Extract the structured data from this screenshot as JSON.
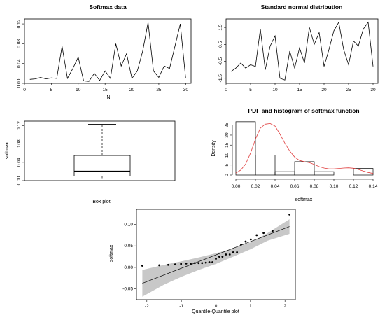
{
  "chart_data": [
    {
      "id": "softmax-data",
      "type": "line",
      "title": "Softmax data",
      "xlabel": "N",
      "ylabel": "",
      "xlim": [
        0,
        31
      ],
      "ylim": [
        0,
        0.13
      ],
      "xticks": [
        0,
        5,
        10,
        15,
        20,
        25,
        30
      ],
      "yticks": [
        0.0,
        0.04,
        0.08,
        0.12
      ],
      "ytick_labels": [
        "0.00",
        "0.04",
        "0.08",
        "0.12"
      ],
      "x": [
        1,
        2,
        3,
        4,
        5,
        6,
        7,
        8,
        9,
        10,
        11,
        12,
        13,
        14,
        15,
        16,
        17,
        18,
        19,
        20,
        21,
        22,
        23,
        24,
        25,
        26,
        27,
        28,
        29,
        30
      ],
      "values": [
        0.008,
        0.009,
        0.012,
        0.009,
        0.011,
        0.01,
        0.075,
        0.01,
        0.03,
        0.053,
        0.005,
        0.004,
        0.02,
        0.006,
        0.025,
        0.01,
        0.08,
        0.035,
        0.06,
        0.01,
        0.025,
        0.065,
        0.123,
        0.025,
        0.012,
        0.035,
        0.03,
        0.075,
        0.12,
        0.01
      ]
    },
    {
      "id": "standard-normal",
      "type": "line",
      "title": "Standard normal distribution",
      "xlabel": "",
      "ylabel": "",
      "xlim": [
        0,
        31
      ],
      "ylim": [
        -1.8,
        2.0
      ],
      "xticks": [
        0,
        5,
        10,
        15,
        20,
        25,
        30
      ],
      "yticks": [
        -1.5,
        -0.5,
        0.5,
        1.5
      ],
      "ytick_labels": [
        "-1.5",
        "-0.5",
        "0.5",
        "1.5"
      ],
      "x": [
        1,
        2,
        3,
        4,
        5,
        6,
        7,
        8,
        9,
        10,
        11,
        12,
        13,
        14,
        15,
        16,
        17,
        18,
        19,
        20,
        21,
        22,
        23,
        24,
        25,
        26,
        27,
        28,
        29,
        30
      ],
      "values": [
        -1.1,
        -0.9,
        -0.6,
        -0.9,
        -0.7,
        -0.8,
        1.4,
        -1.0,
        0.4,
        1.0,
        -1.5,
        -1.6,
        0.1,
        -0.9,
        0.3,
        -0.6,
        1.5,
        0.5,
        1.2,
        -0.8,
        0.2,
        1.3,
        1.8,
        0.2,
        -0.7,
        0.7,
        0.4,
        1.4,
        1.8,
        -0.8
      ]
    },
    {
      "id": "box-plot",
      "type": "box",
      "title": "",
      "xlabel": "Box plot",
      "ylabel": "softmax",
      "ylim": [
        0,
        0.13
      ],
      "yticks": [
        0.0,
        0.04,
        0.08,
        0.12
      ],
      "ytick_labels": [
        "0.00",
        "0.04",
        "0.08",
        "0.12"
      ],
      "box": {
        "min": 0.004,
        "q1": 0.01,
        "median": 0.02,
        "q3": 0.055,
        "max": 0.123
      }
    },
    {
      "id": "pdf-histogram",
      "type": "histogram",
      "title": "PDF and histogram of softmax function",
      "xlabel": "softmax",
      "ylabel": "Density",
      "xlim": [
        0,
        0.14
      ],
      "ylim": [
        0,
        27
      ],
      "xticks": [
        0.0,
        0.02,
        0.04,
        0.06,
        0.08,
        0.1,
        0.12,
        0.14
      ],
      "xtick_labels": [
        "0.00",
        "0.02",
        "0.04",
        "0.06",
        "0.08",
        "0.10",
        "0.12",
        "0.14"
      ],
      "yticks": [
        0,
        5,
        10,
        15,
        20,
        25
      ],
      "ytick_labels": [
        "0",
        "5",
        "10",
        "15",
        "20",
        "25"
      ],
      "bins": [
        0,
        0.02,
        0.04,
        0.06,
        0.08,
        0.1,
        0.12,
        0.14
      ],
      "density": [
        26.7,
        10.0,
        1.7,
        6.7,
        1.7,
        0,
        3.3
      ],
      "density_curve_color": "#e04040",
      "density_curve": {
        "x": [
          0.0,
          0.005,
          0.01,
          0.015,
          0.02,
          0.025,
          0.03,
          0.035,
          0.04,
          0.045,
          0.05,
          0.055,
          0.06,
          0.065,
          0.07,
          0.075,
          0.08,
          0.085,
          0.09,
          0.095,
          0.1,
          0.105,
          0.11,
          0.115,
          0.12,
          0.125,
          0.13,
          0.135,
          0.14
        ],
        "y": [
          1.0,
          2.5,
          5.5,
          11.0,
          18.0,
          23.5,
          25.5,
          25.8,
          24.5,
          20.5,
          16.0,
          12.0,
          9.0,
          7.3,
          6.7,
          6.2,
          5.3,
          4.2,
          3.5,
          3.1,
          3.1,
          3.3,
          3.5,
          3.6,
          3.4,
          2.8,
          2.0,
          1.3,
          0.8
        ]
      }
    },
    {
      "id": "qq-plot",
      "type": "scatter",
      "title": "",
      "xlabel": "Quantile-Quantile plot",
      "ylabel": "softmax",
      "xlim": [
        -2.3,
        2.3
      ],
      "ylim": [
        -0.075,
        0.135
      ],
      "xticks": [
        -2,
        -1,
        0,
        1,
        2
      ],
      "xtick_labels": [
        "-2",
        "-1",
        "0",
        "1",
        "2"
      ],
      "yticks": [
        -0.05,
        0.0,
        0.05,
        0.1
      ],
      "ytick_labels": [
        "-0.05",
        "0.00",
        "0.05",
        "0.10"
      ],
      "band_color": "#c8c8c8",
      "x": [
        -2.13,
        -1.64,
        -1.38,
        -1.18,
        -1.01,
        -0.86,
        -0.73,
        -0.61,
        -0.5,
        -0.4,
        -0.29,
        -0.19,
        -0.1,
        0.0,
        0.1,
        0.19,
        0.29,
        0.4,
        0.5,
        0.61,
        0.73,
        0.86,
        1.01,
        1.18,
        1.38,
        1.64,
        2.13
      ],
      "values": [
        0.004,
        0.005,
        0.006,
        0.007,
        0.008,
        0.009,
        0.009,
        0.01,
        0.01,
        0.01,
        0.011,
        0.012,
        0.012,
        0.02,
        0.025,
        0.025,
        0.03,
        0.03,
        0.035,
        0.035,
        0.053,
        0.06,
        0.065,
        0.075,
        0.08,
        0.085,
        0.123
      ],
      "reference_line": {
        "x": [
          -2.13,
          2.13
        ],
        "y": [
          -0.037,
          0.095
        ]
      },
      "band_lower": {
        "x": [
          -2.13,
          -1.5,
          -1.0,
          -0.5,
          0.0,
          0.5,
          1.0,
          1.5,
          2.13
        ],
        "y": [
          -0.068,
          -0.04,
          -0.022,
          -0.006,
          0.008,
          0.025,
          0.042,
          0.062,
          0.078
        ]
      },
      "band_upper": {
        "x": [
          -2.13,
          -1.5,
          -1.0,
          -0.5,
          0.0,
          0.5,
          1.0,
          1.5,
          2.13
        ],
        "y": [
          -0.006,
          0.006,
          0.014,
          0.023,
          0.033,
          0.044,
          0.058,
          0.08,
          0.112
        ]
      }
    }
  ]
}
